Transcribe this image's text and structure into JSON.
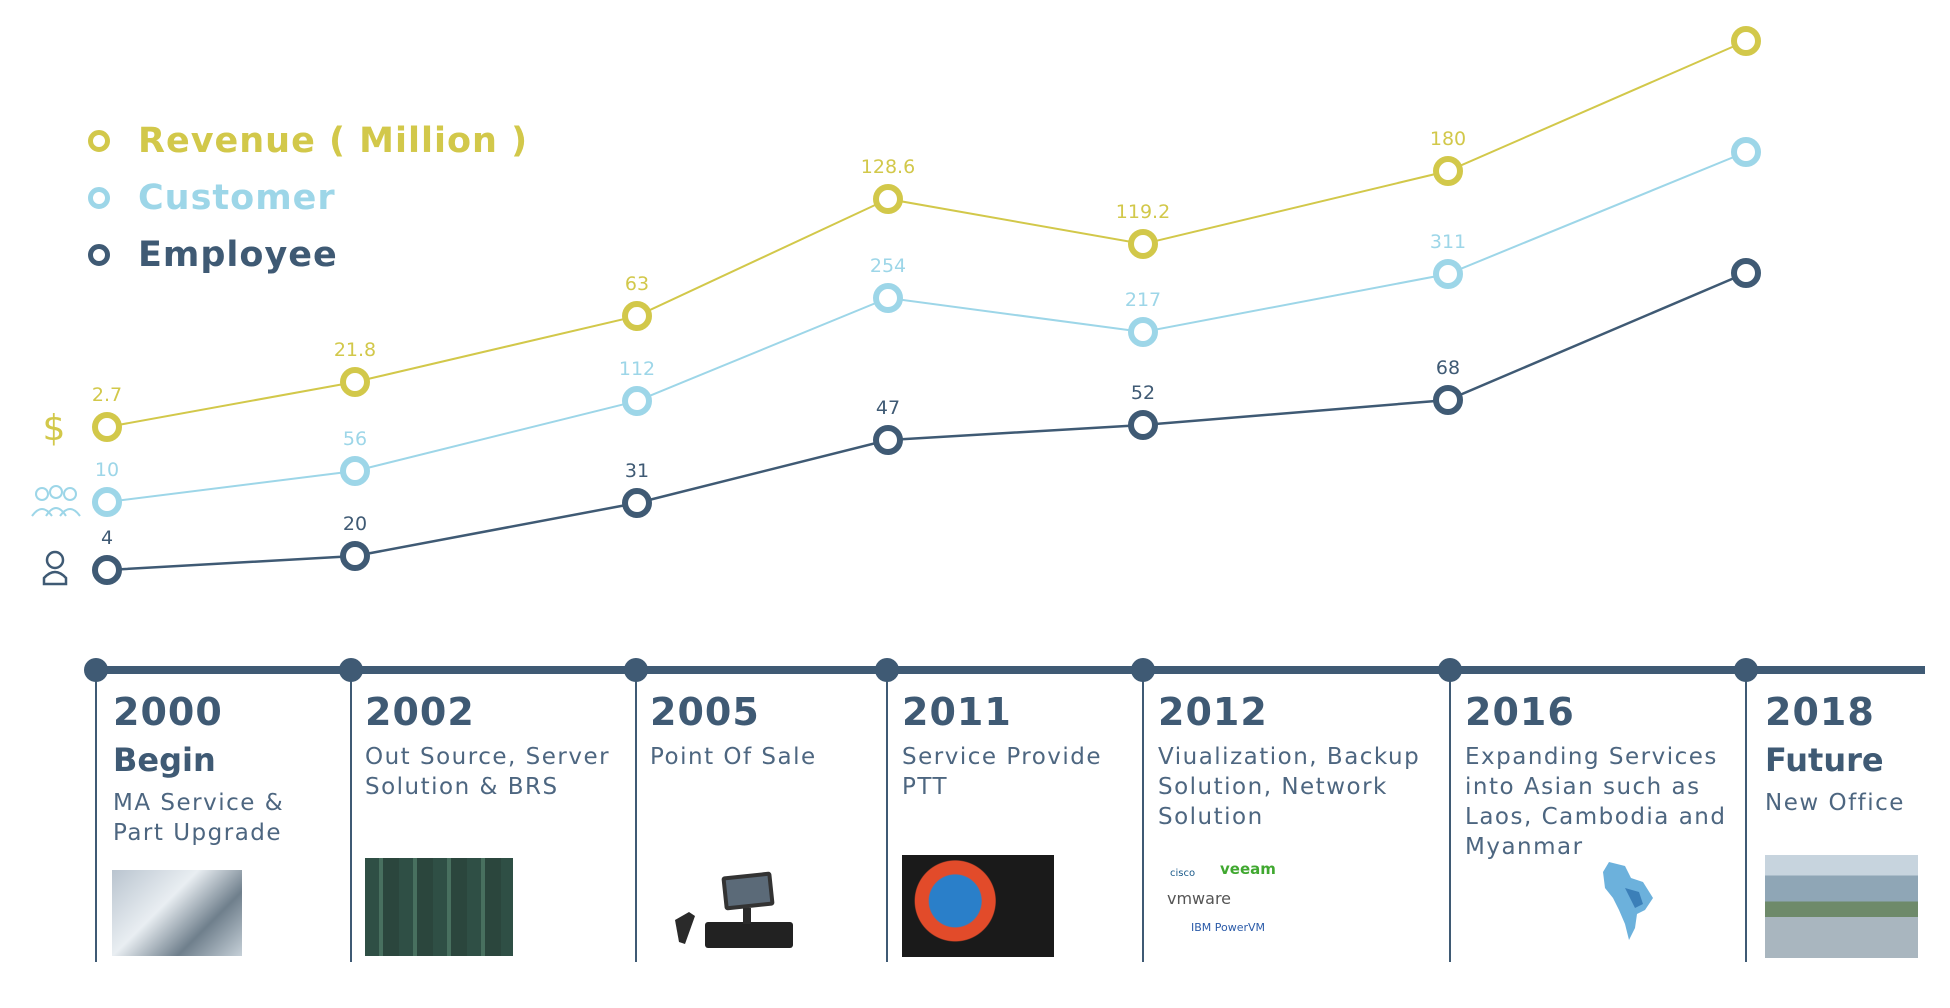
{
  "colors": {
    "revenue": "#d2c84a",
    "customer": "#9dd6e8",
    "employee": "#3f5a74",
    "timeline": "#3f5a74"
  },
  "legend": [
    {
      "label": "Revenue ( Million )",
      "series": "revenue"
    },
    {
      "label": "Customer",
      "series": "customer"
    },
    {
      "label": "Employee",
      "series": "employee"
    }
  ],
  "axis_icons": [
    "dollar-icon",
    "group-icon",
    "person-icon"
  ],
  "chart_data": {
    "type": "line",
    "categories": [
      "2000",
      "2002",
      "2005",
      "2011",
      "2012",
      "2016",
      "2018"
    ],
    "series": [
      {
        "name": "Revenue ( Million )",
        "key": "revenue",
        "values": [
          2.7,
          21.8,
          63,
          128.6,
          119.2,
          180,
          null
        ],
        "labels": [
          "2.7",
          "21.8",
          "63",
          "128.6",
          "119.2",
          "180",
          ""
        ]
      },
      {
        "name": "Customer",
        "key": "customer",
        "values": [
          10,
          56,
          112,
          254,
          217,
          311,
          null
        ],
        "labels": [
          "10",
          "56",
          "112",
          "254",
          "217",
          "311",
          ""
        ]
      },
      {
        "name": "Employee",
        "key": "employee",
        "values": [
          4,
          20,
          31,
          47,
          52,
          68,
          null
        ],
        "labels": [
          "4",
          "20",
          "31",
          "47",
          "52",
          "68",
          ""
        ]
      }
    ],
    "note": "2018 points are plotted without value labels"
  },
  "timeline": [
    {
      "year": "2000",
      "head": "Begin",
      "desc": "MA Service &\nPart Upgrade",
      "image": "workshop-photo"
    },
    {
      "year": "2002",
      "head": "",
      "desc": "Out Source, Server\nSolution & BRS",
      "image": "server-rack-photo"
    },
    {
      "year": "2005",
      "head": "",
      "desc": "Point Of Sale",
      "image": "pos-terminal-image"
    },
    {
      "year": "2011",
      "head": "",
      "desc": "Service Provide\nPTT",
      "image": "ptt-logo-photo"
    },
    {
      "year": "2012",
      "head": "",
      "desc": "Viualization, Backup\nSolution, Network\nSolution",
      "image": "partner-logos"
    },
    {
      "year": "2016",
      "head": "",
      "desc": "Expanding Services\ninto Asian such as\nLaos, Cambodia and\nMyanmar",
      "image": "map-image"
    },
    {
      "year": "2018",
      "head": "Future",
      "desc": "New Office",
      "image": "office-building-photo"
    }
  ],
  "partner_logos": [
    "cisco",
    "veeam",
    "vmware",
    "IBM PowerVM"
  ]
}
